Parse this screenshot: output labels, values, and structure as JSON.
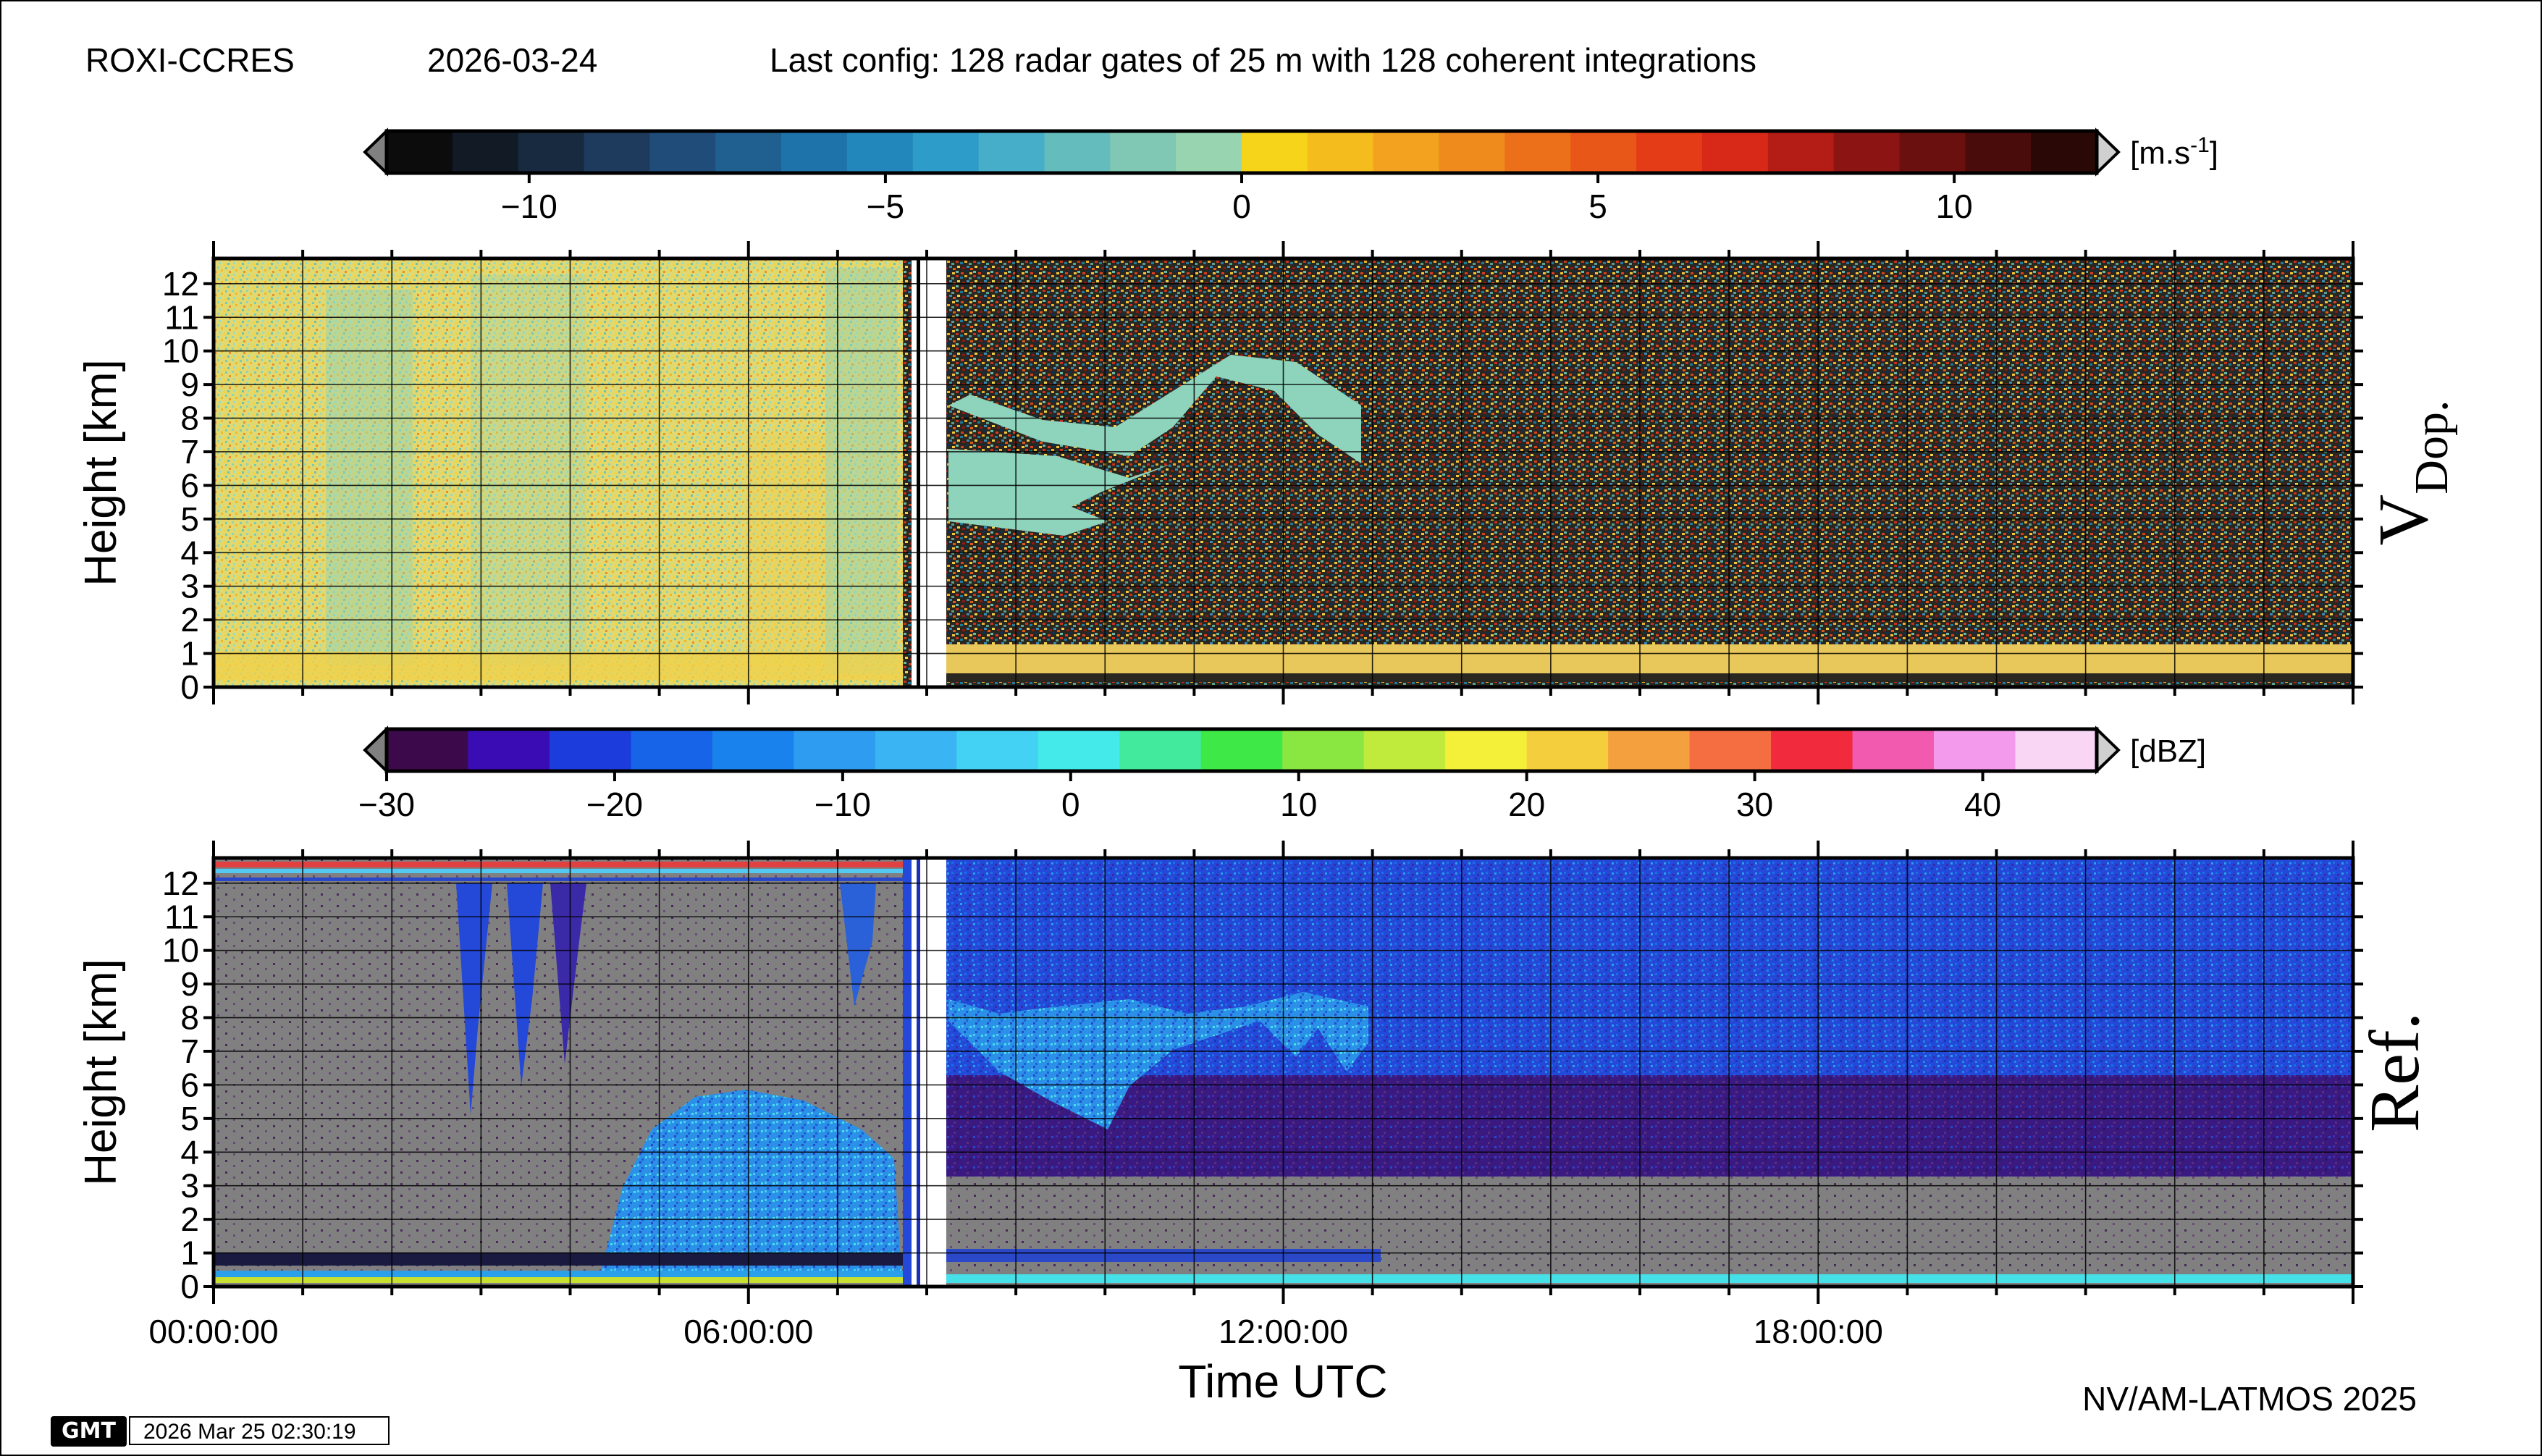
{
  "header": {
    "station": "ROXI-CCRES",
    "date": "2026-03-24",
    "config": "Last config: 128 radar gates of 25 m with 128 coherent integrations"
  },
  "footer": {
    "credit": "NV/AM-LATMOS 2025",
    "gmt_logo": "GMT",
    "timestamp": "2026 Mar 25 02:30:19"
  },
  "colors": {
    "missing_data": "#808080",
    "no_data_gap": "#ffffff"
  },
  "chart_data": [
    {
      "type": "heatmap",
      "panel_label": "V",
      "panel_label_sub": "Dop.",
      "ylabel": "Height [km]",
      "xlabel": "",
      "ylim": [
        0,
        12.75
      ],
      "yticks": [
        "0",
        "1",
        "2",
        "3",
        "4",
        "5",
        "6",
        "7",
        "8",
        "9",
        "10",
        "11",
        "12"
      ],
      "xlim_hours": [
        0,
        24
      ],
      "colorbar": {
        "unit_base": "[m.s",
        "unit_exp": "-1",
        "unit_end": "]",
        "range": [
          -12,
          12
        ],
        "ticks": [
          "-10",
          "-5",
          "0",
          "5",
          "10"
        ],
        "tick_values": [
          -10,
          -5,
          0,
          5,
          10
        ]
      },
      "grid": true
    },
    {
      "type": "heatmap",
      "panel_label": "Ref.",
      "ylabel": "Height [km]",
      "xlabel": "Time UTC",
      "ylim": [
        0,
        12.75
      ],
      "yticks": [
        "0",
        "1",
        "2",
        "3",
        "4",
        "5",
        "6",
        "7",
        "8",
        "9",
        "10",
        "11",
        "12"
      ],
      "xlim_hours": [
        0,
        24
      ],
      "xticks": [
        "00:00:00",
        "06:00:00",
        "12:00:00",
        "18:00:00"
      ],
      "xtick_hours": [
        0,
        6,
        12,
        18
      ],
      "colorbar": {
        "unit": "[dBZ]",
        "range": [
          -30,
          45
        ],
        "ticks": [
          "-30",
          "-20",
          "-10",
          "0",
          "10",
          "20",
          "30",
          "40"
        ],
        "tick_values": [
          -30,
          -20,
          -10,
          0,
          10,
          20,
          30,
          40
        ]
      },
      "grid": true
    }
  ]
}
